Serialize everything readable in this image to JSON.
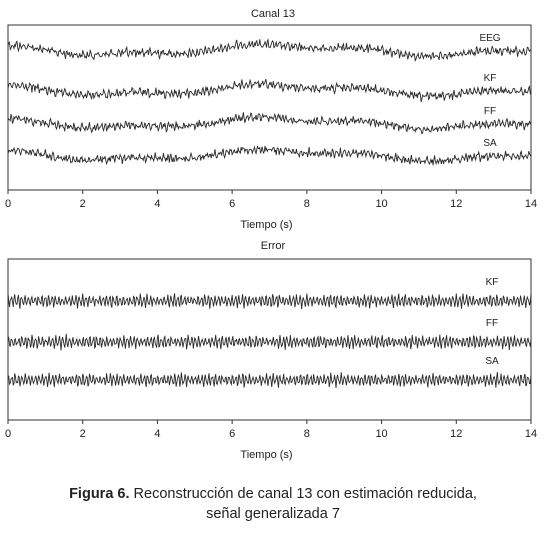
{
  "chart_data": [
    {
      "type": "line",
      "title": "Canal 13",
      "xlabel": "Tiempo (s)",
      "ylabel": "",
      "xlim": [
        0,
        14
      ],
      "xticks": [
        0,
        2,
        4,
        6,
        8,
        10,
        12,
        14
      ],
      "grid": false,
      "series": [
        {
          "name": "EEG",
          "kind": "eeg"
        },
        {
          "name": "KF",
          "kind": "eeg"
        },
        {
          "name": "FF",
          "kind": "eeg"
        },
        {
          "name": "SA",
          "kind": "eeg"
        }
      ]
    },
    {
      "type": "line",
      "title": "Error",
      "xlabel": "Tiempo (s)",
      "ylabel": "",
      "xlim": [
        0,
        14
      ],
      "xticks": [
        0,
        2,
        4,
        6,
        8,
        10,
        12,
        14
      ],
      "grid": false,
      "series": [
        {
          "name": "KF",
          "kind": "error"
        },
        {
          "name": "FF",
          "kind": "error"
        },
        {
          "name": "SA",
          "kind": "error"
        }
      ]
    }
  ],
  "caption": {
    "label": "Figura 6.",
    "text": "Reconstrucción de canal 13 con estimación reducida,",
    "text2": "señal generalizada 7"
  },
  "colors": {
    "line": "#2a2a2a",
    "axis": "#333333"
  }
}
